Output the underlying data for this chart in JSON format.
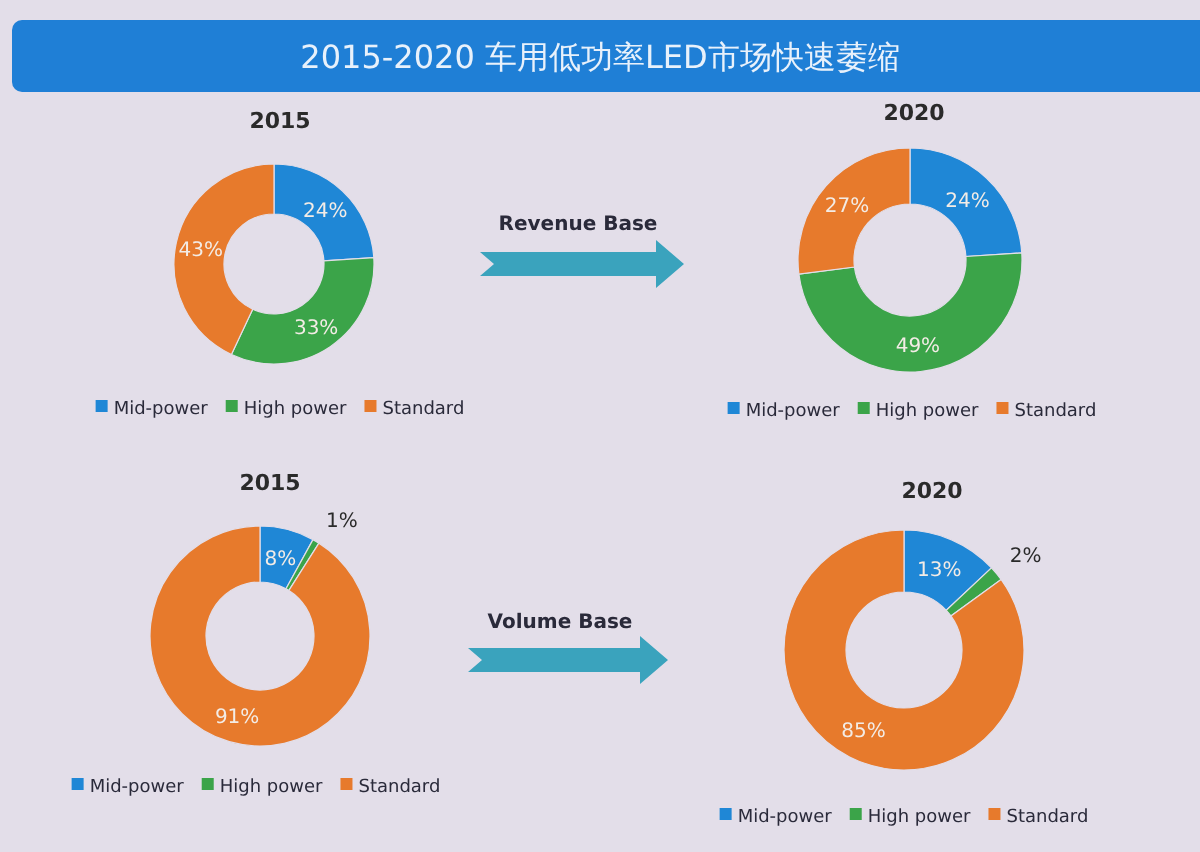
{
  "chart_data": [
    {
      "type": "other",
      "title": "2015-2020 车用低功率LED市场快速萎缩"
    },
    {
      "type": "donut",
      "title": "2015",
      "categories": [
        "Mid-power",
        "High power",
        "Standard"
      ],
      "values": [
        24,
        33,
        43
      ],
      "colors": [
        "#1f87d6",
        "#3ba449",
        "#e77a2c"
      ],
      "value_labels": [
        "24%",
        "33%",
        "43%"
      ],
      "legend": "bottom"
    },
    {
      "type": "other",
      "title": "Revenue Base"
    },
    {
      "type": "donut",
      "title": "2020",
      "categories": [
        "Mid-power",
        "High power",
        "Standard"
      ],
      "values": [
        24,
        49,
        27
      ],
      "colors": [
        "#1f87d6",
        "#3ba449",
        "#e77a2c"
      ],
      "value_labels": [
        "24%",
        "49%",
        "27%"
      ],
      "legend": "bottom"
    },
    {
      "type": "donut",
      "title": "2015",
      "categories": [
        "Mid-power",
        "High power",
        "Standard"
      ],
      "values": [
        8,
        1,
        91
      ],
      "colors": [
        "#1f87d6",
        "#3ba449",
        "#e77a2c"
      ],
      "value_labels": [
        "8%",
        "1%",
        "91%"
      ],
      "legend": "bottom"
    },
    {
      "type": "other",
      "title": "Volume Base"
    },
    {
      "type": "donut",
      "title": "2020",
      "categories": [
        "Mid-power",
        "High power",
        "Standard"
      ],
      "values": [
        13,
        2,
        85
      ],
      "colors": [
        "#1f87d6",
        "#3ba449",
        "#e77a2c"
      ],
      "value_labels": [
        "13%",
        "2%",
        "85%"
      ],
      "legend": "bottom"
    }
  ]
}
